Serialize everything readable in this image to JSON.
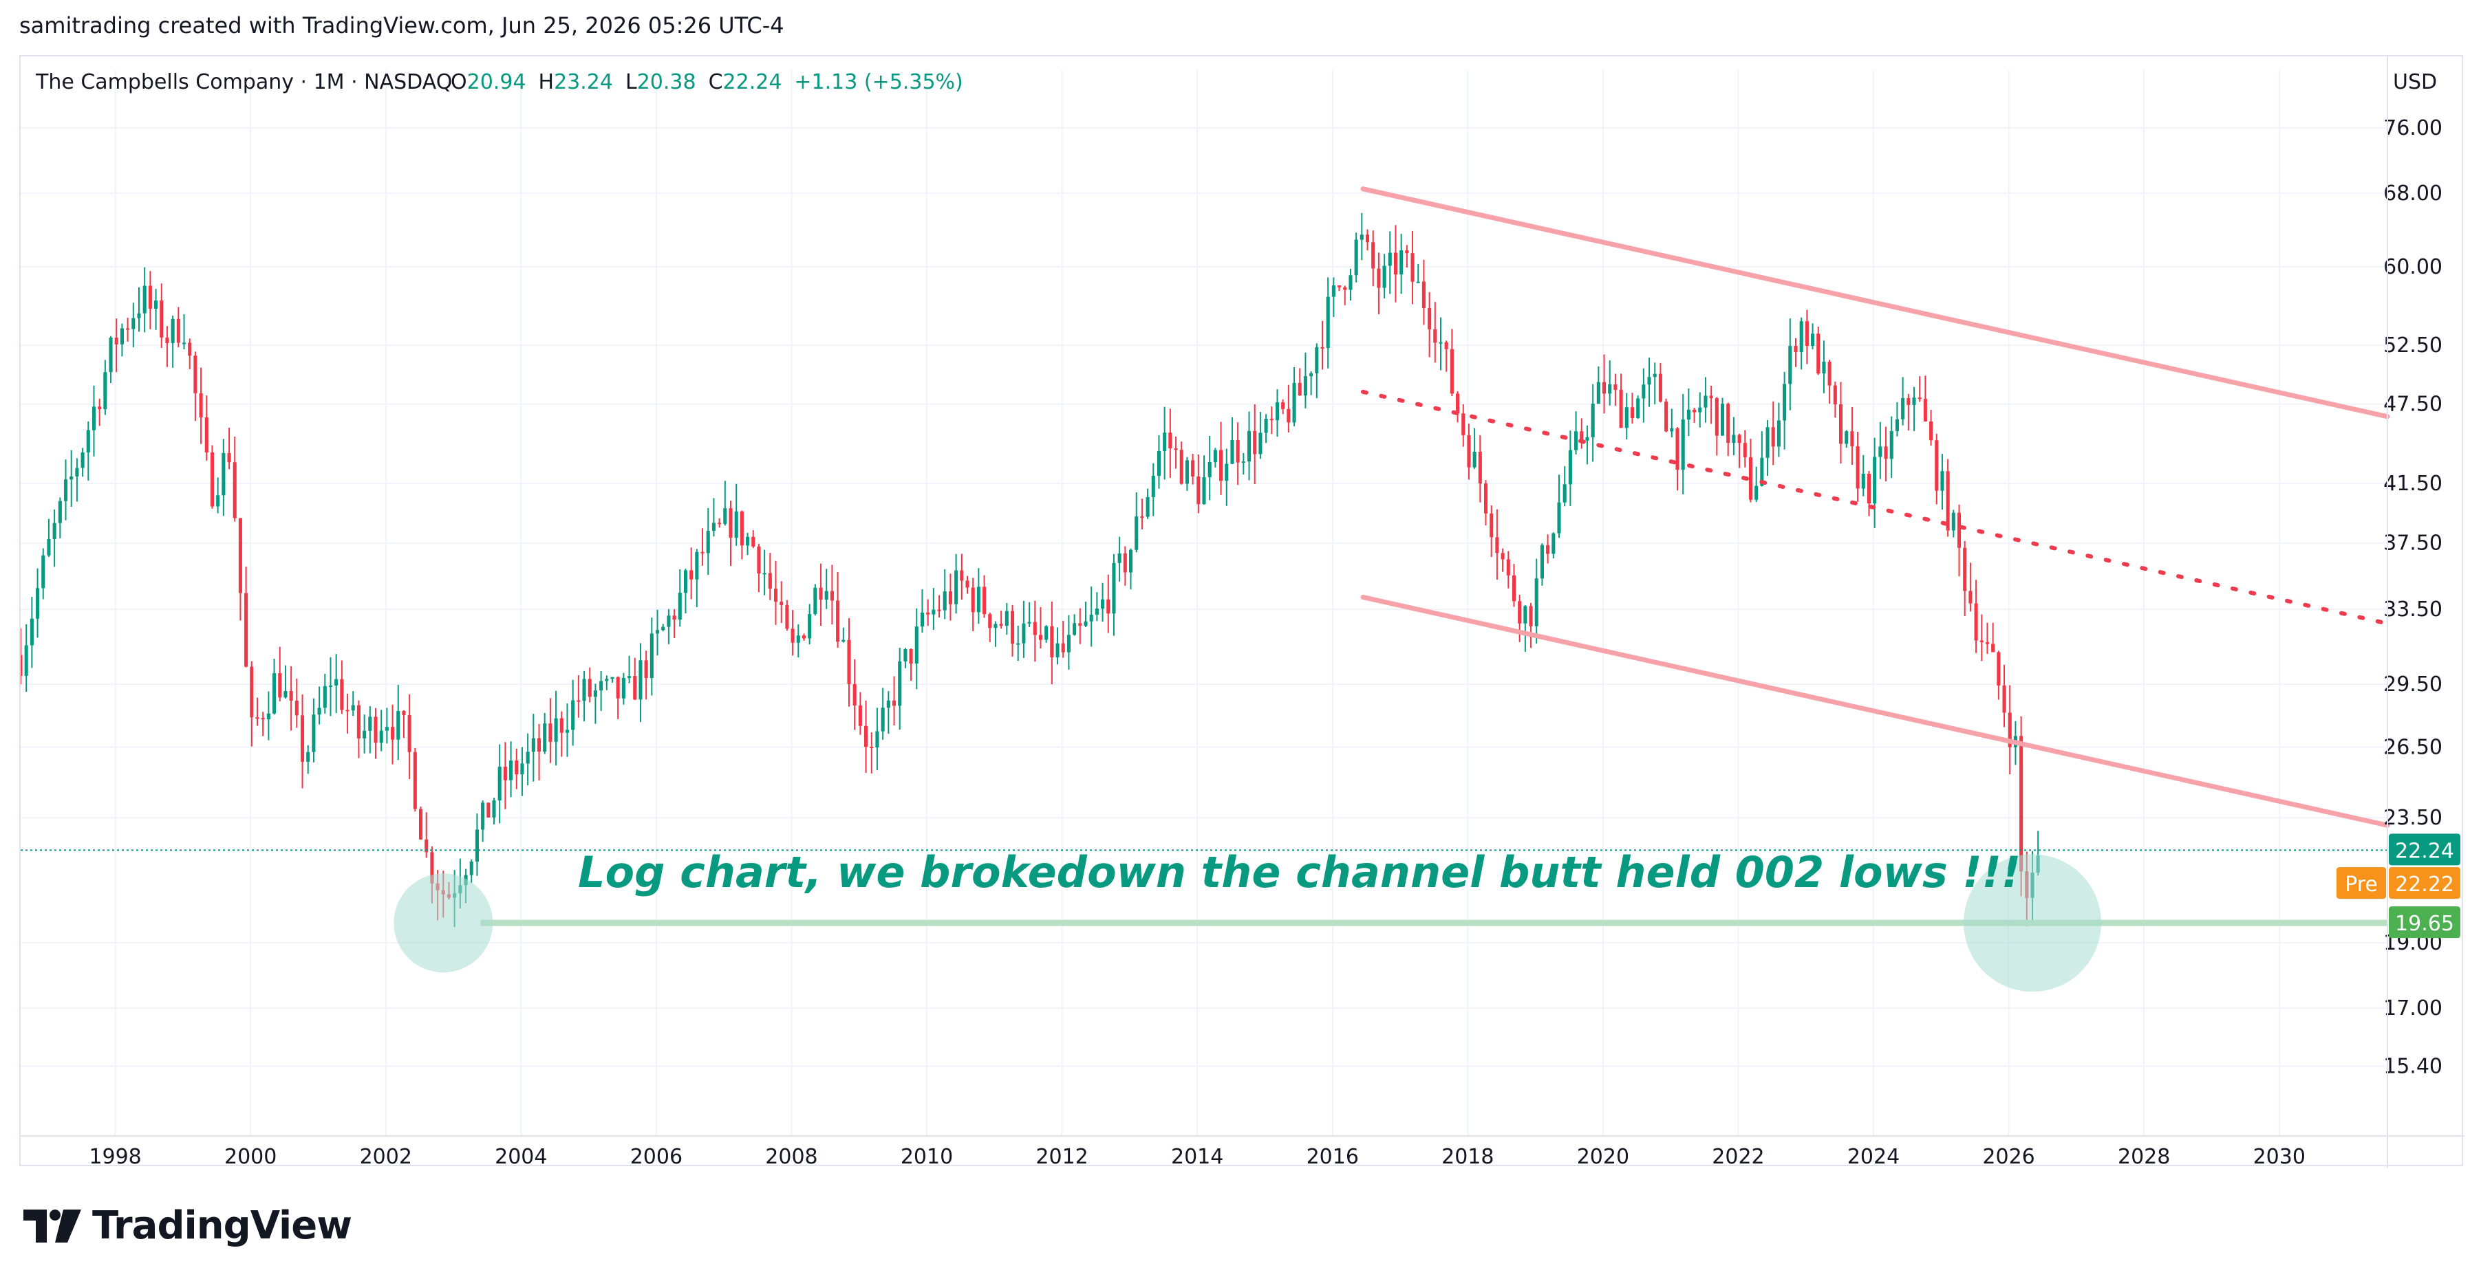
{
  "credit": "samitrading created with TradingView.com, Jun 25, 2026 05:26 UTC-4",
  "header": {
    "symbol": "The Campbells Company · 1M · NASDAQ",
    "o_label": "O",
    "o_value": "20.94",
    "h_label": "H",
    "h_value": "23.24",
    "l_label": "L",
    "l_value": "20.38",
    "c_label": "C",
    "c_value": "22.24",
    "change": "+1.13 (+5.35%)"
  },
  "currency": "USD",
  "annotation": "Log chart, we brokedown the channel butt held 002 lows !!!",
  "logo_text": "TradingView",
  "colors": {
    "up": "#089981",
    "down": "#f23645",
    "channel": "#f7a1a8",
    "mid_dotted": "#ef3b4e",
    "support": "#b7dfc1",
    "circle": "#a8dcd1",
    "text_green": "#089981",
    "pre": "#f7931a"
  },
  "chart_data": {
    "type": "candlestick",
    "scale": "log",
    "timeframe": "1M",
    "x_ticks": [
      "1998",
      "2000",
      "2002",
      "2004",
      "2006",
      "2008",
      "2010",
      "2012",
      "2014",
      "2016",
      "2018",
      "2020",
      "2022",
      "2024",
      "2026",
      "2028",
      "2030"
    ],
    "y_ticks": [
      "76.00",
      "68.00",
      "60.00",
      "52.50",
      "47.50",
      "41.50",
      "37.50",
      "33.50",
      "29.50",
      "26.50",
      "23.50",
      "19.00",
      "17.00",
      "15.40"
    ],
    "ylim": [
      14.5,
      80
    ],
    "xlim": [
      1996.6,
      2031.6
    ],
    "last_price": "22.24",
    "premarket_label": "Pre",
    "premarket_price": "22.22",
    "support_level": "19.65",
    "price_anchors": [
      [
        1996.6,
        31
      ],
      [
        1997.0,
        37
      ],
      [
        1997.5,
        44
      ],
      [
        1998.0,
        53
      ],
      [
        1998.4,
        57
      ],
      [
        1998.8,
        53
      ],
      [
        1999.0,
        55
      ],
      [
        1999.4,
        41
      ],
      [
        1999.7,
        44
      ],
      [
        2000.0,
        27
      ],
      [
        2000.4,
        30
      ],
      [
        2000.8,
        26
      ],
      [
        2001.2,
        30
      ],
      [
        2001.6,
        27
      ],
      [
        2002.0,
        28
      ],
      [
        2002.3,
        27
      ],
      [
        2002.6,
        22
      ],
      [
        2002.9,
        20.5
      ],
      [
        2003.3,
        22.5
      ],
      [
        2003.7,
        25
      ],
      [
        2004.3,
        26.5
      ],
      [
        2004.9,
        29
      ],
      [
        2005.6,
        29
      ],
      [
        2006.2,
        33
      ],
      [
        2006.7,
        37
      ],
      [
        2007.1,
        39
      ],
      [
        2007.5,
        37
      ],
      [
        2008.0,
        31
      ],
      [
        2008.5,
        36
      ],
      [
        2009.0,
        28
      ],
      [
        2009.2,
        26
      ],
      [
        2009.6,
        30
      ],
      [
        2010.0,
        33
      ],
      [
        2010.5,
        35
      ],
      [
        2011.0,
        33
      ],
      [
        2011.5,
        32
      ],
      [
        2012.0,
        31
      ],
      [
        2012.5,
        33
      ],
      [
        2013.0,
        37
      ],
      [
        2013.5,
        45
      ],
      [
        2014.0,
        41
      ],
      [
        2014.5,
        44
      ],
      [
        2015.0,
        45
      ],
      [
        2015.5,
        48
      ],
      [
        2015.9,
        55
      ],
      [
        2016.4,
        63
      ],
      [
        2016.7,
        58
      ],
      [
        2017.0,
        61
      ],
      [
        2017.5,
        55
      ],
      [
        2017.9,
        46
      ],
      [
        2018.3,
        40
      ],
      [
        2018.6,
        35
      ],
      [
        2018.9,
        33
      ],
      [
        2019.2,
        38
      ],
      [
        2019.6,
        44
      ],
      [
        2020.0,
        49
      ],
      [
        2020.3,
        47
      ],
      [
        2020.8,
        49
      ],
      [
        2021.1,
        44
      ],
      [
        2021.5,
        48
      ],
      [
        2021.9,
        45
      ],
      [
        2022.2,
        41
      ],
      [
        2022.6,
        47
      ],
      [
        2022.9,
        55
      ],
      [
        2023.2,
        51
      ],
      [
        2023.5,
        45
      ],
      [
        2023.9,
        41
      ],
      [
        2024.3,
        45
      ],
      [
        2024.6,
        49
      ],
      [
        2024.9,
        43
      ],
      [
        2025.2,
        38
      ],
      [
        2025.5,
        33
      ],
      [
        2025.8,
        30
      ],
      [
        2026.1,
        26.5
      ],
      [
        2026.2,
        20.5
      ],
      [
        2026.35,
        21.1
      ],
      [
        2026.5,
        22.24
      ]
    ],
    "channel_upper": [
      [
        2016.45,
        68.5
      ],
      [
        2031.6,
        46.5
      ]
    ],
    "channel_lower": [
      [
        2016.45,
        34.2
      ],
      [
        2031.6,
        23.2
      ]
    ],
    "channel_mid": [
      [
        2016.45,
        48.5
      ],
      [
        2031.6,
        32.7
      ]
    ],
    "support_line": [
      [
        2003.4,
        19.65
      ],
      [
        2031.6,
        19.65
      ]
    ],
    "highlight_circles": [
      [
        2002.85,
        19.65
      ],
      [
        2026.35,
        19.65
      ]
    ]
  }
}
